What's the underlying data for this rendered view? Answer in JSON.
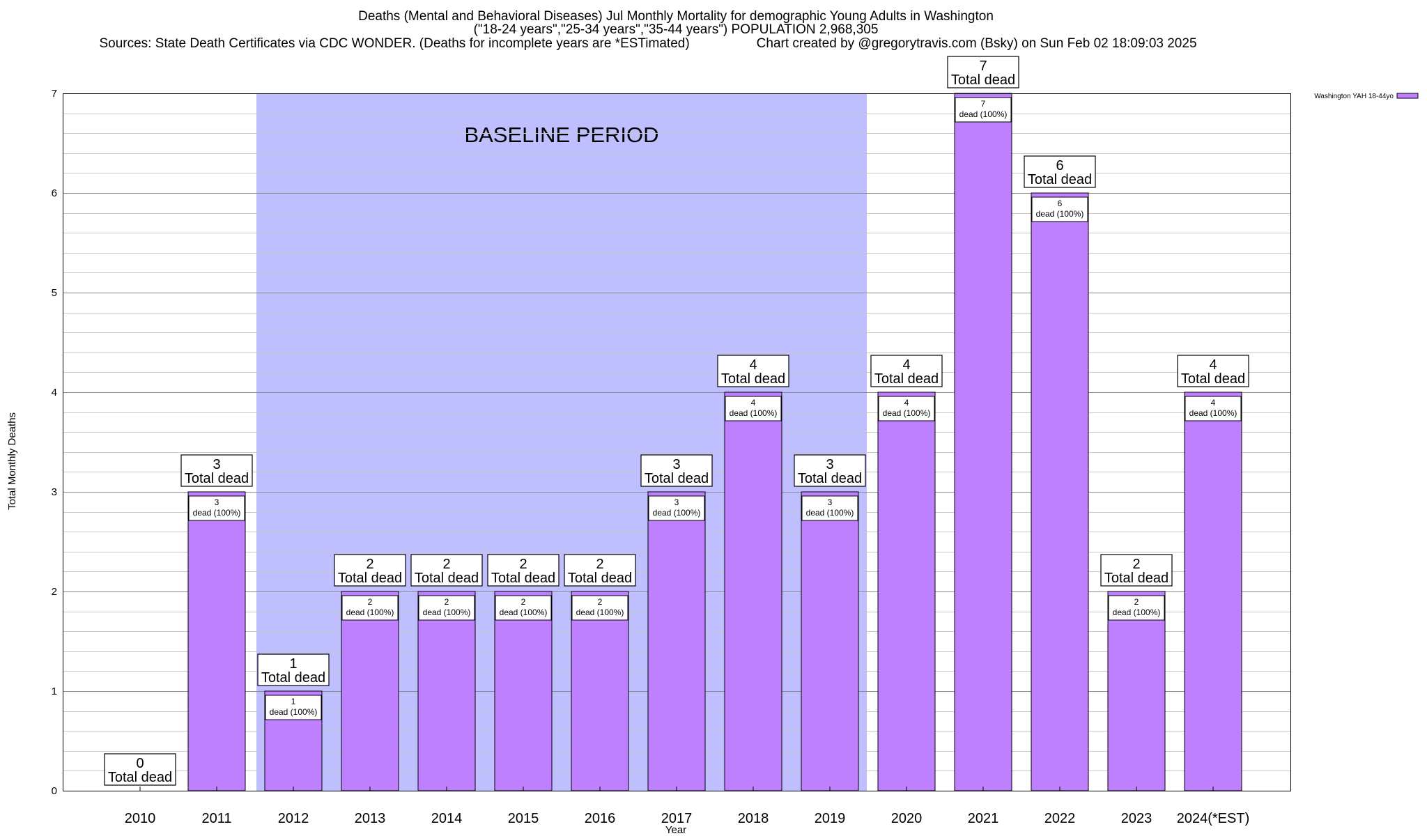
{
  "chart_data": {
    "type": "bar",
    "title": "Deaths (Mental and Behavioral Diseases) Jul Monthly Mortality for demographic Young Adults in Washington",
    "subtitle": "(\"18-24 years\",\"25-34 years\",\"35-44 years\") POPULATION 2,968,305",
    "source": "Sources: State Death Certificates via CDC WONDER. (Deaths for incomplete years are *ESTimated)",
    "credit": "Chart created by @gregorytravis.com (Bsky) on Sun Feb 02 18:09:03 2025",
    "xlabel": "Year",
    "ylabel": "Total Monthly Deaths",
    "ylim": [
      0,
      7
    ],
    "yticks": [
      "0",
      "1",
      "2",
      "3",
      "4",
      "5",
      "6",
      "7"
    ],
    "grid": true,
    "legend_position": "top-right",
    "categories": [
      "2010",
      "2011",
      "2012",
      "2013",
      "2014",
      "2015",
      "2016",
      "2017",
      "2018",
      "2019",
      "2020",
      "2021",
      "2022",
      "2023",
      "2024(*EST)"
    ],
    "series": [
      {
        "name": "Washington YAH 18-44yo",
        "color": "#bf80ff",
        "values": [
          0,
          3,
          1,
          2,
          2,
          2,
          2,
          3,
          4,
          3,
          4,
          7,
          6,
          2,
          4
        ]
      }
    ],
    "total_label_word": "Total dead",
    "inner_label_word": "dead (100%)",
    "baseline": {
      "label": "BASELINE PERIOD",
      "from": "2012",
      "to": "2019",
      "color": "#bfbfff"
    }
  }
}
